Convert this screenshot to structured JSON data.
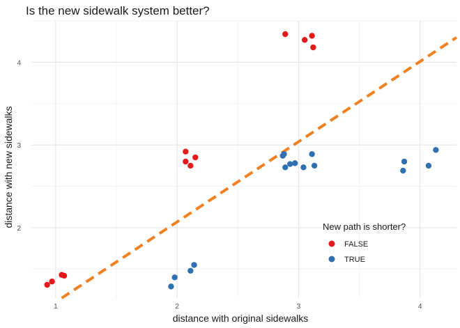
{
  "chart_data": {
    "type": "scatter",
    "title": "Is the new sidewalk system better?",
    "xlabel": "distance with original sidewalks",
    "ylabel": "distance with new sidewalks",
    "xlim": [
      0.8,
      4.3
    ],
    "ylim": [
      1.15,
      4.5
    ],
    "x_ticks": [
      1,
      2,
      3,
      4
    ],
    "y_ticks": [
      2,
      3,
      4
    ],
    "grid": true,
    "legend": {
      "title": "New path is shorter?",
      "placement": "bottom-right"
    },
    "series": [
      {
        "name": "FALSE",
        "color": "#e31a1c",
        "points": [
          {
            "x": 0.93,
            "y": 1.31
          },
          {
            "x": 0.97,
            "y": 1.35
          },
          {
            "x": 1.05,
            "y": 1.43
          },
          {
            "x": 1.07,
            "y": 1.42
          },
          {
            "x": 2.07,
            "y": 2.92
          },
          {
            "x": 2.07,
            "y": 2.8
          },
          {
            "x": 2.11,
            "y": 2.75
          },
          {
            "x": 2.15,
            "y": 2.85
          },
          {
            "x": 2.89,
            "y": 4.34
          },
          {
            "x": 3.05,
            "y": 4.27
          },
          {
            "x": 3.11,
            "y": 4.32
          },
          {
            "x": 3.12,
            "y": 4.18
          }
        ]
      },
      {
        "name": "TRUE",
        "color": "#3070b0",
        "points": [
          {
            "x": 1.95,
            "y": 1.29
          },
          {
            "x": 1.98,
            "y": 1.4
          },
          {
            "x": 2.11,
            "y": 1.48
          },
          {
            "x": 2.14,
            "y": 1.55
          },
          {
            "x": 2.87,
            "y": 2.87
          },
          {
            "x": 2.88,
            "y": 2.89
          },
          {
            "x": 2.89,
            "y": 2.73
          },
          {
            "x": 2.93,
            "y": 2.77
          },
          {
            "x": 2.97,
            "y": 2.78
          },
          {
            "x": 3.04,
            "y": 2.73
          },
          {
            "x": 3.11,
            "y": 2.89
          },
          {
            "x": 3.13,
            "y": 2.75
          },
          {
            "x": 3.86,
            "y": 2.69
          },
          {
            "x": 3.87,
            "y": 2.8
          },
          {
            "x": 4.07,
            "y": 2.75
          },
          {
            "x": 4.13,
            "y": 2.94
          }
        ]
      }
    ],
    "reference_line": {
      "style": "dashed",
      "color": "#f28020",
      "from": {
        "x": 1.05,
        "y": 1.15
      },
      "to": {
        "x": 4.3,
        "y": 4.3
      }
    }
  }
}
